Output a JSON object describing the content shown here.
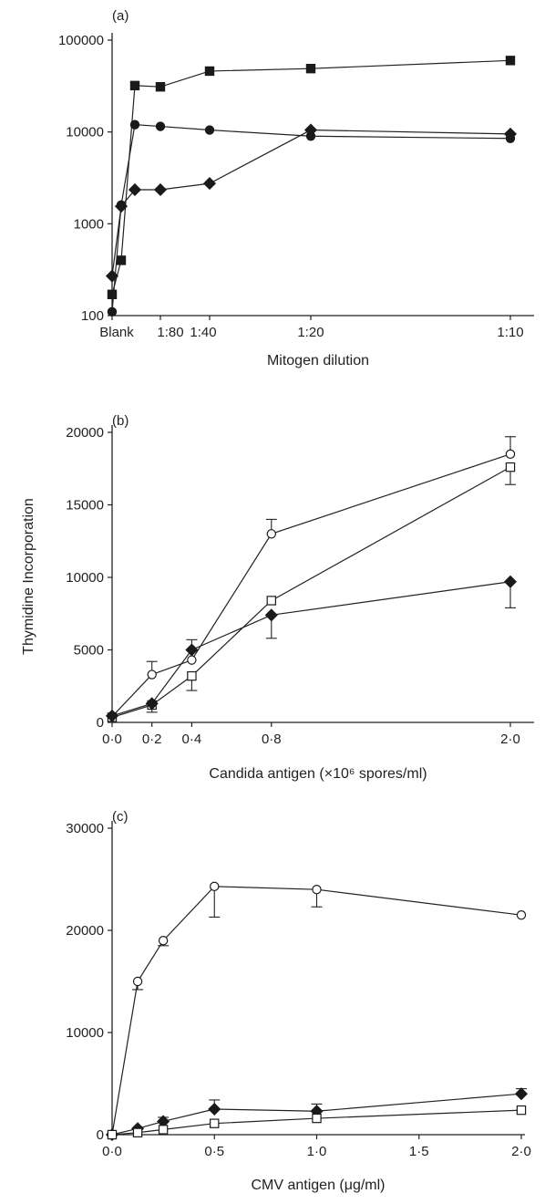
{
  "chart_data": [
    {
      "type": "line",
      "panel_label": "(a)",
      "xlabel": "Mitogen dilution",
      "ylabel": "",
      "yscale": "log",
      "ylim": [
        100,
        100000
      ],
      "y_ticks": [
        100,
        1000,
        10000,
        100000
      ],
      "y_tick_labels": [
        "100",
        "1000",
        "10000",
        "100000"
      ],
      "x_ticks": [
        "Blank",
        "1:80",
        "1:40",
        "1:20",
        "1:10"
      ],
      "grid": false,
      "series": [
        {
          "marker": "square-filled",
          "x": [
            "Blank",
            "1:320",
            "1:160",
            "1:80",
            "1:40",
            "1:20",
            "1:10"
          ],
          "y": [
            170,
            400,
            32000,
            31000,
            46000,
            49000,
            60000
          ]
        },
        {
          "marker": "circle-filled",
          "x": [
            "Blank",
            "1:320",
            "1:160",
            "1:80",
            "1:40",
            "1:20",
            "1:10"
          ],
          "y": [
            110,
            1600,
            12000,
            11500,
            10500,
            9000,
            8500
          ]
        },
        {
          "marker": "diamond-filled",
          "x": [
            "Blank",
            "1:320",
            "1:160",
            "1:80",
            "1:40",
            "1:20",
            "1:10"
          ],
          "y": [
            270,
            1550,
            2350,
            2350,
            2750,
            10500,
            9500
          ]
        }
      ]
    },
    {
      "type": "line",
      "panel_label": "(b)",
      "xlabel": "Candida antigen (×10⁶ spores/ml)",
      "ylabel": "Thymidine Incorporation",
      "ylim": [
        0,
        20000
      ],
      "y_ticks": [
        0,
        5000,
        10000,
        15000,
        20000
      ],
      "x_ticks": [
        0,
        0.2,
        0.4,
        0.8,
        2.0
      ],
      "x_tick_labels": [
        "0·0",
        "0·2",
        "0·4",
        "0·8",
        "2·0"
      ],
      "grid": false,
      "series": [
        {
          "marker": "circle-open",
          "x": [
            0,
            0.2,
            0.4,
            0.8,
            2.0
          ],
          "y": [
            400,
            3300,
            4300,
            13000,
            18500
          ],
          "err": [
            0,
            900,
            0,
            1000,
            1200
          ]
        },
        {
          "marker": "square-open",
          "x": [
            0,
            0.2,
            0.4,
            0.8,
            2.0
          ],
          "y": [
            350,
            1200,
            3200,
            8400,
            17600
          ],
          "err": [
            0,
            500,
            1000,
            0,
            1200
          ]
        },
        {
          "marker": "diamond-filled",
          "x": [
            0,
            0.2,
            0.4,
            0.8,
            2.0
          ],
          "y": [
            450,
            1300,
            5000,
            7400,
            9700
          ],
          "err": [
            0,
            0,
            700,
            1600,
            1800
          ]
        }
      ]
    },
    {
      "type": "line",
      "panel_label": "(c)",
      "xlabel": "CMV antigen (μg/ml)",
      "ylabel": "",
      "ylim": [
        0,
        30000
      ],
      "y_ticks": [
        0,
        10000,
        20000,
        30000
      ],
      "xlim": [
        0,
        2.0
      ],
      "x_ticks": [
        0,
        0.5,
        1.0,
        1.5,
        2.0
      ],
      "x_tick_labels": [
        "0·0",
        "0·5",
        "1·0",
        "1·5",
        "2·0"
      ],
      "grid": false,
      "series": [
        {
          "marker": "circle-open",
          "x": [
            0,
            0.125,
            0.25,
            0.5,
            1.0,
            2.0
          ],
          "y": [
            0,
            15000,
            19000,
            24300,
            24000,
            21500
          ],
          "err": [
            0,
            800,
            500,
            3000,
            1700,
            0
          ]
        },
        {
          "marker": "diamond-filled",
          "x": [
            0,
            0.125,
            0.25,
            0.5,
            1.0,
            2.0
          ],
          "y": [
            0,
            600,
            1300,
            2500,
            2300,
            4000
          ],
          "err": [
            0,
            0,
            400,
            900,
            700,
            500
          ]
        },
        {
          "marker": "square-open",
          "x": [
            0,
            0.125,
            0.25,
            0.5,
            1.0,
            2.0
          ],
          "y": [
            0,
            200,
            500,
            1100,
            1600,
            2400
          ],
          "err": [
            0,
            0,
            0,
            0,
            0,
            0
          ]
        }
      ]
    }
  ]
}
